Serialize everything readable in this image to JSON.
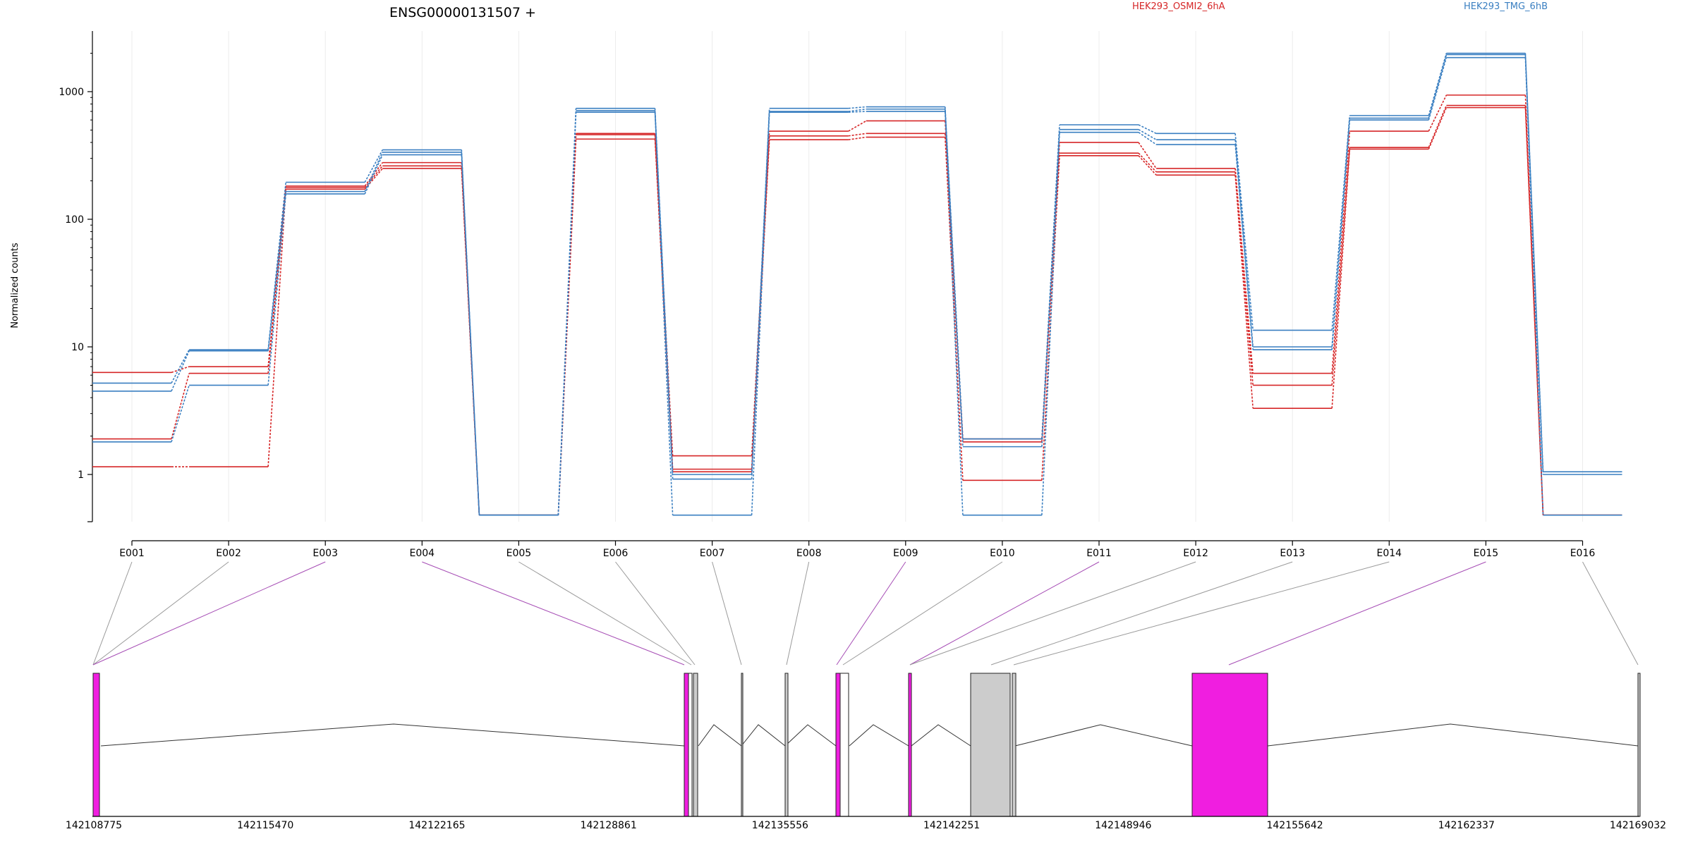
{
  "chart_data": {
    "type": "line",
    "title": "ENSG00000131507 +",
    "ylabel": "Normalized counts",
    "yscale": "log",
    "ylim": [
      0.5,
      2500
    ],
    "yticks": [
      1,
      10,
      100,
      1000
    ],
    "ytick_labels": [
      "1",
      "10",
      "100",
      "1000"
    ],
    "categories": [
      "E001",
      "E002",
      "E003",
      "E004",
      "E005",
      "E006",
      "E007",
      "E008",
      "E009",
      "E010",
      "E011",
      "E012",
      "E013",
      "E014",
      "E015",
      "E016"
    ],
    "legend": [
      {
        "label": "HEK293_OSMI2_6hA",
        "color": "#d62728"
      },
      {
        "label": "HEK293_TMG_6hB",
        "color": "#3a7fc1"
      }
    ],
    "series": [
      {
        "group": 0,
        "color": "#d62728",
        "values": [
          6.3,
          7.0,
          182,
          278,
          0.48,
          470,
          1.4,
          490,
          590,
          1.9,
          400,
          250,
          6.2,
          490,
          940,
          0.48
        ]
      },
      {
        "group": 0,
        "color": "#d62728",
        "values": [
          1.9,
          6.2,
          177,
          262,
          0.48,
          460,
          1.1,
          450,
          470,
          1.8,
          330,
          235,
          5.0,
          365,
          780,
          0.48
        ]
      },
      {
        "group": 0,
        "color": "#d62728",
        "values": [
          1.15,
          1.15,
          172,
          250,
          0.48,
          425,
          1.05,
          420,
          440,
          0.9,
          315,
          222,
          3.3,
          355,
          750,
          0.48
        ]
      },
      {
        "group": 1,
        "color": "#3a7fc1",
        "values": [
          5.2,
          9.5,
          195,
          350,
          0.48,
          740,
          1.0,
          740,
          760,
          1.9,
          550,
          470,
          13.5,
          650,
          2000,
          1.05
        ]
      },
      {
        "group": 1,
        "color": "#3a7fc1",
        "values": [
          4.5,
          9.3,
          165,
          335,
          0.48,
          710,
          0.92,
          700,
          730,
          1.65,
          505,
          420,
          10.0,
          620,
          1950,
          1.0
        ]
      },
      {
        "group": 1,
        "color": "#3a7fc1",
        "values": [
          1.8,
          5.0,
          158,
          320,
          0.48,
          690,
          0.48,
          690,
          700,
          0.48,
          480,
          385,
          9.5,
          600,
          1850,
          0.48
        ]
      }
    ],
    "genomic_axis_labels": [
      "142108775",
      "142115470",
      "142122165",
      "142128861",
      "142135556",
      "142142251",
      "142148946",
      "142155642",
      "142162337",
      "142169032"
    ]
  }
}
